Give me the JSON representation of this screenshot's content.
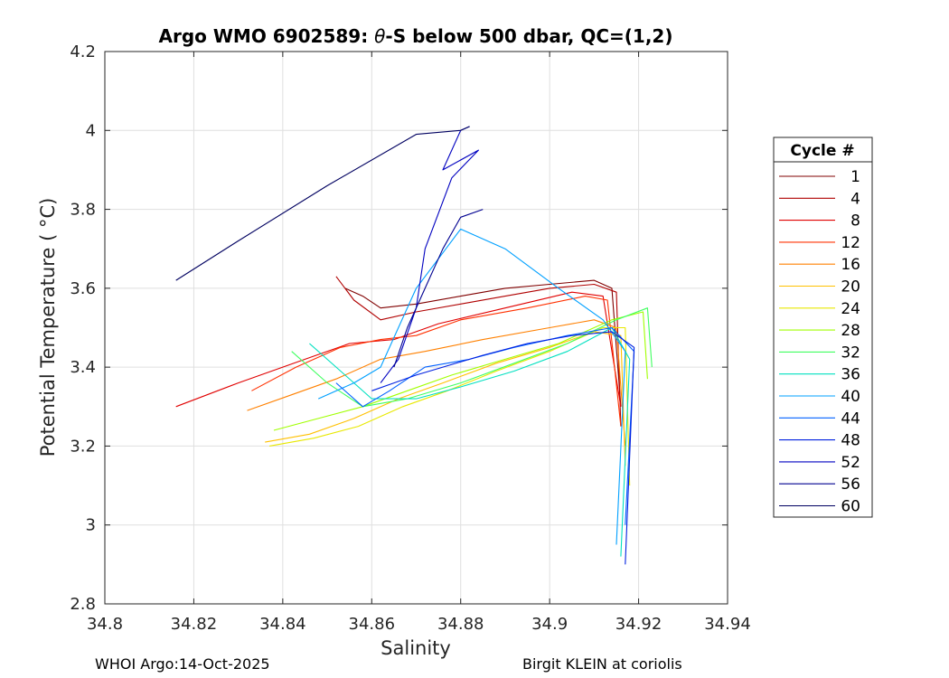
{
  "chart_data": {
    "type": "line",
    "title_prefix": "Argo WMO 6902589: ",
    "title_theta": "θ",
    "title_suffix": "-S below 500 dbar,  QC=(1,2)",
    "xlabel": "Salinity",
    "ylabel": "Potential Temperature ( °C)",
    "xlim": [
      34.8,
      34.94
    ],
    "ylim": [
      2.8,
      4.2
    ],
    "x_ticks": [
      34.8,
      34.82,
      34.84,
      34.86,
      34.88,
      34.9,
      34.92,
      34.94
    ],
    "x_tick_labels": [
      "34.8",
      "34.82",
      "34.84",
      "34.86",
      "34.88",
      "34.9",
      "34.92",
      "34.94"
    ],
    "y_ticks": [
      2.8,
      3.0,
      3.2,
      3.4,
      3.6,
      3.8,
      4.0,
      4.2
    ],
    "y_tick_labels": [
      "2.8",
      "3",
      "3.2",
      "3.4",
      "3.6",
      "3.8",
      "4",
      "4.2"
    ],
    "grid": true,
    "legend_title": "Cycle #",
    "legend_position": "right",
    "series": [
      {
        "name": "1",
        "color": "#800000",
        "x": [
          34.854,
          34.858,
          34.862,
          34.87,
          34.88,
          34.89,
          34.9,
          34.91,
          34.914,
          34.916
        ],
        "y": [
          3.6,
          3.58,
          3.55,
          3.56,
          3.58,
          3.6,
          3.61,
          3.62,
          3.6,
          3.3
        ]
      },
      {
        "name": "4",
        "color": "#b00000",
        "x": [
          34.852,
          34.856,
          34.862,
          34.87,
          34.88,
          34.89,
          34.9,
          34.91,
          34.915,
          34.916
        ],
        "y": [
          3.63,
          3.57,
          3.52,
          3.54,
          3.56,
          3.58,
          3.6,
          3.61,
          3.59,
          3.25
        ]
      },
      {
        "name": "8",
        "color": "#e00000",
        "x": [
          34.816,
          34.83,
          34.845,
          34.855,
          34.865,
          34.875,
          34.89,
          34.905,
          34.912,
          34.916
        ],
        "y": [
          3.3,
          3.36,
          3.42,
          3.46,
          3.47,
          3.51,
          3.55,
          3.59,
          3.58,
          3.3
        ]
      },
      {
        "name": "12",
        "color": "#ff3000",
        "x": [
          34.833,
          34.843,
          34.853,
          34.862,
          34.87,
          34.88,
          34.895,
          34.908,
          34.913,
          34.916
        ],
        "y": [
          3.34,
          3.4,
          3.45,
          3.47,
          3.48,
          3.52,
          3.55,
          3.58,
          3.57,
          3.25
        ]
      },
      {
        "name": "16",
        "color": "#ff8000",
        "x": [
          34.832,
          34.842,
          34.852,
          34.862,
          34.872,
          34.885,
          34.9,
          34.91,
          34.915,
          34.917
        ],
        "y": [
          3.29,
          3.33,
          3.37,
          3.42,
          3.44,
          3.47,
          3.5,
          3.52,
          3.5,
          3.2
        ]
      },
      {
        "name": "20",
        "color": "#ffc000",
        "x": [
          34.836,
          34.846,
          34.856,
          34.866,
          34.876,
          34.888,
          34.9,
          34.91,
          34.916,
          34.917
        ],
        "y": [
          3.21,
          3.23,
          3.27,
          3.32,
          3.36,
          3.41,
          3.45,
          3.49,
          3.48,
          3.15
        ]
      },
      {
        "name": "24",
        "color": "#e8e800",
        "x": [
          34.837,
          34.847,
          34.857,
          34.867,
          34.877,
          34.888,
          34.9,
          34.912,
          34.917,
          34.918
        ],
        "y": [
          3.2,
          3.22,
          3.25,
          3.3,
          3.34,
          3.39,
          3.44,
          3.5,
          3.5,
          3.1
        ]
      },
      {
        "name": "28",
        "color": "#a0ff00",
        "x": [
          34.838,
          34.848,
          34.858,
          34.868,
          34.878,
          34.89,
          34.902,
          34.914,
          34.921,
          34.922
        ],
        "y": [
          3.24,
          3.27,
          3.3,
          3.34,
          3.38,
          3.42,
          3.46,
          3.52,
          3.54,
          3.37
        ]
      },
      {
        "name": "32",
        "color": "#40ff60",
        "x": [
          34.842,
          34.85,
          34.858,
          34.868,
          34.88,
          34.892,
          34.904,
          34.915,
          34.922,
          34.923
        ],
        "y": [
          3.44,
          3.36,
          3.3,
          3.32,
          3.36,
          3.41,
          3.46,
          3.52,
          3.55,
          3.4
        ]
      },
      {
        "name": "36",
        "color": "#00e0c0",
        "x": [
          34.846,
          34.852,
          34.86,
          34.87,
          34.88,
          34.892,
          34.904,
          34.914,
          34.918,
          34.916
        ],
        "y": [
          3.46,
          3.4,
          3.32,
          3.32,
          3.35,
          3.39,
          3.44,
          3.5,
          3.42,
          2.92
        ]
      },
      {
        "name": "40",
        "color": "#00a0ff",
        "x": [
          34.848,
          34.856,
          34.862,
          34.87,
          34.88,
          34.89,
          34.902,
          34.912,
          34.917,
          34.915
        ],
        "y": [
          3.32,
          3.36,
          3.4,
          3.6,
          3.75,
          3.7,
          3.6,
          3.52,
          3.44,
          2.95
        ]
      },
      {
        "name": "44",
        "color": "#0060ff",
        "x": [
          34.852,
          34.858,
          34.864,
          34.872,
          34.882,
          34.892,
          34.904,
          34.914,
          34.919,
          34.917
        ],
        "y": [
          3.36,
          3.3,
          3.34,
          3.4,
          3.42,
          3.45,
          3.48,
          3.5,
          3.44,
          3.0
        ]
      },
      {
        "name": "48",
        "color": "#0020e0",
        "x": [
          34.86,
          34.865,
          34.87,
          34.876,
          34.885,
          34.895,
          34.905,
          34.914,
          34.919,
          34.917
        ],
        "y": [
          3.34,
          3.36,
          3.38,
          3.4,
          3.43,
          3.46,
          3.48,
          3.49,
          3.45,
          2.9
        ]
      },
      {
        "name": "52",
        "color": "#0000c0",
        "x": [
          34.862,
          34.866,
          34.87,
          34.872,
          34.878,
          34.884,
          34.876,
          34.88,
          34.882
        ],
        "y": [
          3.36,
          3.42,
          3.55,
          3.7,
          3.88,
          3.95,
          3.9,
          4.0,
          4.01
        ]
      },
      {
        "name": "56",
        "color": "#000090",
        "x": [
          34.865,
          34.868,
          34.872,
          34.876,
          34.88,
          34.885
        ],
        "y": [
          3.4,
          3.5,
          3.6,
          3.7,
          3.78,
          3.8
        ]
      },
      {
        "name": "60",
        "color": "#000060",
        "x": [
          34.816,
          34.83,
          34.85,
          34.87,
          34.88,
          34.882
        ],
        "y": [
          3.62,
          3.72,
          3.86,
          3.99,
          4.0,
          4.01
        ]
      }
    ]
  },
  "footer": {
    "left": "WHOI Argo:14-Oct-2025",
    "right": "Birgit KLEIN at coriolis"
  }
}
